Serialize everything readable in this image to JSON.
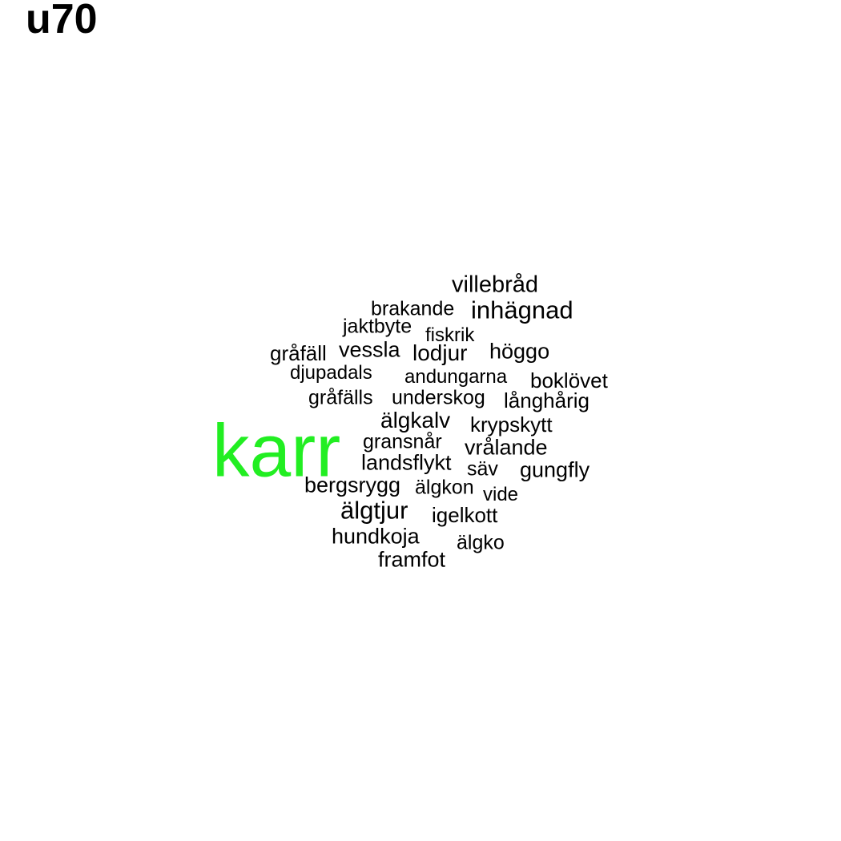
{
  "title": "u70",
  "cloud": {
    "default_color": "#000000",
    "highlight_color": "#22ee22",
    "words": [
      {
        "text": "villebråd",
        "highlight": false
      },
      {
        "text": "brakande",
        "highlight": false
      },
      {
        "text": "inhägnad",
        "highlight": false
      },
      {
        "text": "jaktbyte",
        "highlight": false
      },
      {
        "text": "fiskrik",
        "highlight": false
      },
      {
        "text": "gråfäll",
        "highlight": false
      },
      {
        "text": "vessla",
        "highlight": false
      },
      {
        "text": "lodjur",
        "highlight": false
      },
      {
        "text": "höggo",
        "highlight": false
      },
      {
        "text": "djupadals",
        "highlight": false
      },
      {
        "text": "andungarna",
        "highlight": false
      },
      {
        "text": "boklövet",
        "highlight": false
      },
      {
        "text": "gråfälls",
        "highlight": false
      },
      {
        "text": "underskog",
        "highlight": false
      },
      {
        "text": "långhårig",
        "highlight": false
      },
      {
        "text": "älgkalv",
        "highlight": false
      },
      {
        "text": "krypskytt",
        "highlight": false
      },
      {
        "text": "karr",
        "highlight": true
      },
      {
        "text": "gransnår",
        "highlight": false
      },
      {
        "text": "vrålande",
        "highlight": false
      },
      {
        "text": "landsflykt",
        "highlight": false
      },
      {
        "text": "säv",
        "highlight": false
      },
      {
        "text": "gungfly",
        "highlight": false
      },
      {
        "text": "bergsrygg",
        "highlight": false
      },
      {
        "text": "älgkon",
        "highlight": false
      },
      {
        "text": "vide",
        "highlight": false
      },
      {
        "text": "älgtjur",
        "highlight": false
      },
      {
        "text": "igelkott",
        "highlight": false
      },
      {
        "text": "hundkoja",
        "highlight": false
      },
      {
        "text": "älgko",
        "highlight": false
      },
      {
        "text": "framfot",
        "highlight": false
      }
    ]
  }
}
